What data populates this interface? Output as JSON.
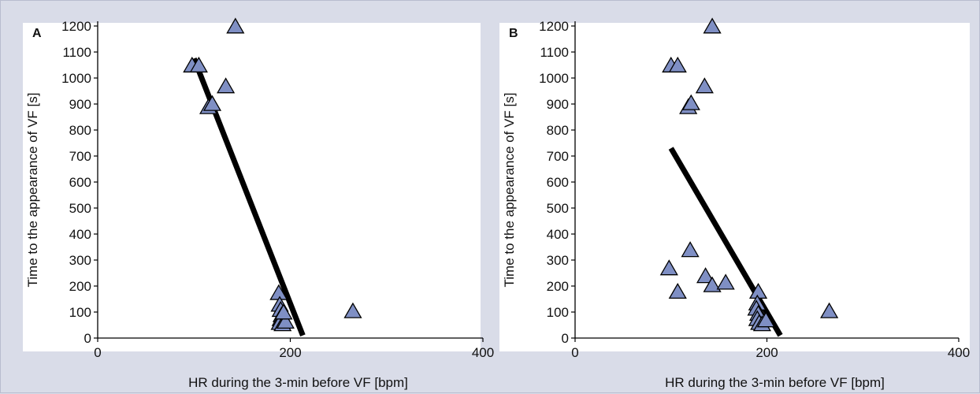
{
  "chart_data": [
    {
      "type": "scatter",
      "panel_label": "A",
      "xlabel": "HR during the 3-min before VF [bpm]",
      "ylabel": "Time to the appearance of VF [s]",
      "xlim": [
        0,
        400
      ],
      "ylim": [
        0,
        1200
      ],
      "xticks": [
        0,
        200,
        400
      ],
      "yticks": [
        0,
        100,
        200,
        300,
        400,
        500,
        600,
        700,
        800,
        900,
        1000,
        1100,
        1200
      ],
      "grid": false,
      "marker": "triangle",
      "marker_color": "#7f8fc4",
      "line_color": "#000000",
      "points": [
        {
          "x": 143,
          "y": 1195
        },
        {
          "x": 98,
          "y": 1045
        },
        {
          "x": 105,
          "y": 1045
        },
        {
          "x": 133,
          "y": 965
        },
        {
          "x": 115,
          "y": 885
        },
        {
          "x": 119,
          "y": 897
        },
        {
          "x": 188,
          "y": 170
        },
        {
          "x": 189,
          "y": 125
        },
        {
          "x": 190,
          "y": 105
        },
        {
          "x": 191,
          "y": 85
        },
        {
          "x": 190,
          "y": 70
        },
        {
          "x": 189,
          "y": 55
        },
        {
          "x": 192,
          "y": 50
        },
        {
          "x": 195,
          "y": 60
        },
        {
          "x": 193,
          "y": 95
        },
        {
          "x": 265,
          "y": 100
        }
      ],
      "trendline": [
        {
          "x": 100,
          "y": 1075
        },
        {
          "x": 213,
          "y": 10
        }
      ]
    },
    {
      "type": "scatter",
      "panel_label": "B",
      "xlabel": "HR during the 3-min before VF [bpm]",
      "ylabel": "Time to the appearance of VF [s]",
      "xlim": [
        0,
        400
      ],
      "ylim": [
        0,
        1200
      ],
      "xticks": [
        0,
        200,
        400
      ],
      "yticks": [
        0,
        100,
        200,
        300,
        400,
        500,
        600,
        700,
        800,
        900,
        1000,
        1100,
        1200
      ],
      "grid": false,
      "marker": "triangle",
      "marker_color": "#7f8fc4",
      "line_color": "#000000",
      "points": [
        {
          "x": 143,
          "y": 1195
        },
        {
          "x": 100,
          "y": 1045
        },
        {
          "x": 107,
          "y": 1045
        },
        {
          "x": 135,
          "y": 965
        },
        {
          "x": 118,
          "y": 885
        },
        {
          "x": 121,
          "y": 900
        },
        {
          "x": 98,
          "y": 265
        },
        {
          "x": 107,
          "y": 175
        },
        {
          "x": 120,
          "y": 335
        },
        {
          "x": 136,
          "y": 235
        },
        {
          "x": 143,
          "y": 200
        },
        {
          "x": 157,
          "y": 210
        },
        {
          "x": 191,
          "y": 175
        },
        {
          "x": 190,
          "y": 130
        },
        {
          "x": 189,
          "y": 110
        },
        {
          "x": 191,
          "y": 90
        },
        {
          "x": 190,
          "y": 70
        },
        {
          "x": 192,
          "y": 55
        },
        {
          "x": 195,
          "y": 50
        },
        {
          "x": 199,
          "y": 65
        },
        {
          "x": 265,
          "y": 100
        }
      ],
      "trendline": [
        {
          "x": 100,
          "y": 730
        },
        {
          "x": 214,
          "y": 10
        }
      ]
    }
  ]
}
